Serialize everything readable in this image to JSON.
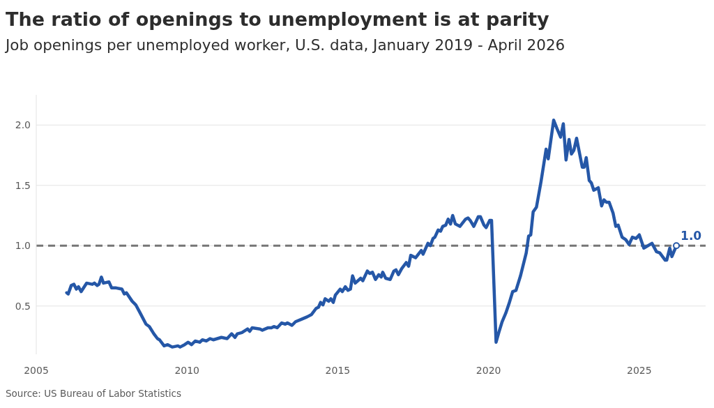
{
  "chart_data": {
    "type": "line",
    "title": "The ratio of openings to unemployment is at parity",
    "subtitle": "Job openings per unemployed worker, U.S. data, January 2019 - April 2026",
    "annotations": [
      "Source: US Bureau of Labor Statistics"
    ],
    "x": [
      2006.01,
      2006.06,
      2006.16,
      2006.25,
      2006.33,
      2006.4,
      2006.49,
      2006.67,
      2006.86,
      2006.93,
      2007.02,
      2007.08,
      2007.16,
      2007.23,
      2007.41,
      2007.5,
      2007.65,
      2007.84,
      2007.92,
      2007.99,
      2008.18,
      2008.3,
      2008.45,
      2008.64,
      2008.75,
      2008.9,
      2009.02,
      2009.09,
      2009.24,
      2009.36,
      2009.51,
      2009.7,
      2009.77,
      2009.92,
      2010.04,
      2010.15,
      2010.27,
      2010.42,
      2010.51,
      2010.64,
      2010.76,
      2010.87,
      2011.14,
      2011.33,
      2011.48,
      2011.59,
      2011.67,
      2011.82,
      2012.01,
      2012.08,
      2012.16,
      2012.42,
      2012.5,
      2012.69,
      2012.8,
      2012.88,
      2012.99,
      2013.14,
      2013.26,
      2013.33,
      2013.48,
      2013.6,
      2013.79,
      2013.98,
      2014.13,
      2014.28,
      2014.36,
      2014.43,
      2014.51,
      2014.58,
      2014.7,
      2014.77,
      2014.85,
      2014.92,
      2015.08,
      2015.15,
      2015.25,
      2015.34,
      2015.42,
      2015.49,
      2015.58,
      2015.76,
      2015.83,
      2015.98,
      2016.06,
      2016.15,
      2016.25,
      2016.36,
      2016.44,
      2016.49,
      2016.59,
      2016.74,
      2016.86,
      2016.93,
      2017.01,
      2017.12,
      2017.27,
      2017.35,
      2017.42,
      2017.58,
      2017.77,
      2017.83,
      2017.99,
      2018.07,
      2018.16,
      2018.22,
      2018.33,
      2018.41,
      2018.48,
      2018.58,
      2018.66,
      2018.74,
      2018.81,
      2018.9,
      2019.05,
      2019.24,
      2019.32,
      2019.39,
      2019.51,
      2019.66,
      2019.73,
      2019.85,
      2019.92,
      2020.04,
      2020.1,
      2020.25,
      2020.34,
      2020.45,
      2020.57,
      2020.68,
      2020.8,
      2020.91,
      2021.06,
      2021.25,
      2021.33,
      2021.4,
      2021.48,
      2021.59,
      2021.74,
      2021.91,
      2021.98,
      2022.16,
      2022.27,
      2022.39,
      2022.48,
      2022.57,
      2022.67,
      2022.75,
      2022.83,
      2022.92,
      2023.11,
      2023.17,
      2023.24,
      2023.34,
      2023.41,
      2023.49,
      2023.64,
      2023.75,
      2023.83,
      2023.91,
      2024.0,
      2024.13,
      2024.22,
      2024.3,
      2024.43,
      2024.55,
      2024.66,
      2024.77,
      2024.89,
      2025.0,
      2025.15,
      2025.42,
      2025.57,
      2025.68,
      2025.86,
      2025.91,
      2026.01,
      2026.08,
      2026.23
    ],
    "series": [
      {
        "color": "#2557a7",
        "values": [
          0.61,
          0.6,
          0.67,
          0.68,
          0.64,
          0.66,
          0.62,
          0.69,
          0.68,
          0.69,
          0.67,
          0.68,
          0.74,
          0.69,
          0.7,
          0.65,
          0.65,
          0.64,
          0.6,
          0.61,
          0.54,
          0.51,
          0.44,
          0.35,
          0.33,
          0.27,
          0.23,
          0.22,
          0.17,
          0.18,
          0.16,
          0.17,
          0.16,
          0.18,
          0.2,
          0.18,
          0.21,
          0.2,
          0.22,
          0.21,
          0.23,
          0.22,
          0.24,
          0.23,
          0.27,
          0.24,
          0.27,
          0.28,
          0.31,
          0.29,
          0.32,
          0.31,
          0.3,
          0.32,
          0.32,
          0.33,
          0.32,
          0.36,
          0.35,
          0.36,
          0.34,
          0.37,
          0.39,
          0.41,
          0.43,
          0.48,
          0.49,
          0.53,
          0.51,
          0.56,
          0.54,
          0.56,
          0.53,
          0.59,
          0.64,
          0.62,
          0.66,
          0.63,
          0.64,
          0.75,
          0.69,
          0.73,
          0.71,
          0.79,
          0.77,
          0.78,
          0.72,
          0.76,
          0.74,
          0.78,
          0.73,
          0.72,
          0.79,
          0.8,
          0.76,
          0.81,
          0.86,
          0.83,
          0.92,
          0.9,
          0.96,
          0.93,
          1.02,
          1.0,
          1.06,
          1.07,
          1.13,
          1.12,
          1.16,
          1.17,
          1.22,
          1.18,
          1.25,
          1.18,
          1.16,
          1.22,
          1.23,
          1.21,
          1.16,
          1.24,
          1.24,
          1.17,
          1.15,
          1.21,
          1.21,
          0.2,
          0.28,
          0.37,
          0.44,
          0.52,
          0.62,
          0.63,
          0.75,
          0.94,
          1.08,
          1.09,
          1.28,
          1.32,
          1.53,
          1.8,
          1.72,
          2.04,
          1.97,
          1.9,
          2.01,
          1.71,
          1.88,
          1.76,
          1.79,
          1.89,
          1.65,
          1.65,
          1.73,
          1.54,
          1.52,
          1.46,
          1.48,
          1.33,
          1.38,
          1.36,
          1.36,
          1.27,
          1.16,
          1.17,
          1.07,
          1.05,
          1.01,
          1.07,
          1.06,
          1.09,
          0.98,
          1.02,
          0.95,
          0.94,
          0.88,
          0.88,
          0.98,
          0.91,
          1.0
        ],
        "value_labels": [
          null,
          null,
          null,
          null,
          null,
          null,
          null,
          null,
          null,
          null,
          null,
          null,
          null,
          null,
          null,
          null,
          null,
          null,
          null,
          null,
          null,
          null,
          null,
          null,
          null,
          null,
          null,
          null,
          null,
          null,
          null,
          null,
          null,
          null,
          null,
          null,
          null,
          null,
          null,
          null,
          null,
          null,
          null,
          null,
          null,
          null,
          null,
          null,
          null,
          null,
          null,
          null,
          null,
          null,
          null,
          null,
          null,
          null,
          null,
          null,
          null,
          null,
          null,
          null,
          null,
          null,
          null,
          null,
          null,
          null,
          null,
          null,
          null,
          null,
          null,
          null,
          null,
          null,
          null,
          null,
          null,
          null,
          null,
          null,
          null,
          null,
          null,
          null,
          null,
          null,
          null,
          null,
          null,
          null,
          null,
          null,
          null,
          null,
          null,
          null,
          null,
          null,
          null,
          null,
          null,
          null,
          null,
          null,
          null,
          null,
          null,
          null,
          null,
          null,
          null,
          null,
          null,
          null,
          null,
          null,
          null,
          null,
          null,
          null,
          null,
          null,
          null,
          null,
          null,
          null,
          null,
          null,
          null,
          null,
          null,
          null,
          null,
          null,
          null,
          null,
          null,
          null,
          null,
          null,
          null,
          null,
          null,
          null,
          null,
          null,
          null,
          null,
          null,
          null,
          null,
          null,
          null,
          null,
          null,
          null,
          null,
          null,
          null,
          null,
          null,
          null,
          null,
          null,
          null,
          null,
          null,
          null,
          null,
          null,
          null,
          null,
          null,
          null,
          "1.0"
        ]
      }
    ],
    "xlim": [
      2005,
      2027.2
    ],
    "xticks": [
      2005,
      2010,
      2015,
      2020,
      2025
    ],
    "ylim": [
      0.1,
      2.25
    ],
    "yticks": [
      {
        "value": 0.5,
        "label": "0.5"
      },
      {
        "value": 1,
        "label": "1.0"
      },
      {
        "value": 1.5,
        "label": "1.5"
      },
      {
        "value": 2,
        "label": "2.0"
      }
    ],
    "ref_lines": [
      {
        "axis": "y",
        "value": 1,
        "color": "#767676",
        "line_style": "dashed"
      }
    ],
    "grid": "y",
    "legend": false,
    "marker": "none",
    "line_style": "solid"
  }
}
